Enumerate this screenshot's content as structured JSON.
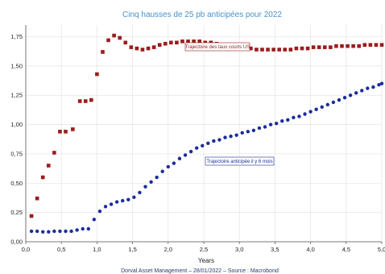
{
  "chart_data": {
    "type": "scatter",
    "title": "Cinq hausses de 25 pb anticipées pour 2022",
    "xlabel": "Years",
    "ylabel": "",
    "xlim": [
      0,
      5
    ],
    "ylim": [
      0,
      1.85
    ],
    "x_ticks": [
      "0,0",
      "0,5",
      "1,0",
      "1,5",
      "2,0",
      "2,5",
      "3,0",
      "3,5",
      "4,0",
      "4,5",
      "5,0"
    ],
    "y_ticks": [
      "0,00",
      "0,25",
      "0,50",
      "0,75",
      "1,00",
      "1,25",
      "1,50",
      "1,75"
    ],
    "grid": true,
    "source": "Dorval Asset Management – 28/01/2022 – Source : Macrobond",
    "series": [
      {
        "name": "Trajectoire des taux courts US",
        "color": "#9b1c1c",
        "marker": "square",
        "points": [
          [
            0.08,
            0.22
          ],
          [
            0.16,
            0.37
          ],
          [
            0.24,
            0.55
          ],
          [
            0.32,
            0.65
          ],
          [
            0.4,
            0.76
          ],
          [
            0.48,
            0.94
          ],
          [
            0.56,
            0.94
          ],
          [
            0.66,
            0.96
          ],
          [
            0.76,
            1.2
          ],
          [
            0.84,
            1.2
          ],
          [
            0.92,
            1.21
          ],
          [
            1.0,
            1.43
          ],
          [
            1.08,
            1.62
          ],
          [
            1.16,
            1.72
          ],
          [
            1.24,
            1.76
          ],
          [
            1.32,
            1.74
          ],
          [
            1.4,
            1.7
          ],
          [
            1.48,
            1.66
          ],
          [
            1.56,
            1.65
          ],
          [
            1.64,
            1.64
          ],
          [
            1.72,
            1.65
          ],
          [
            1.8,
            1.66
          ],
          [
            1.88,
            1.68
          ],
          [
            1.96,
            1.69
          ],
          [
            2.04,
            1.7
          ],
          [
            2.12,
            1.7
          ],
          [
            2.2,
            1.71
          ],
          [
            2.28,
            1.71
          ],
          [
            2.36,
            1.71
          ],
          [
            2.44,
            1.71
          ],
          [
            2.52,
            1.7
          ],
          [
            2.6,
            1.7
          ],
          [
            2.68,
            1.69
          ],
          [
            2.76,
            1.68
          ],
          [
            2.84,
            1.67
          ],
          [
            2.92,
            1.67
          ],
          [
            3.0,
            1.66
          ],
          [
            3.08,
            1.65
          ],
          [
            3.16,
            1.65
          ],
          [
            3.24,
            1.64
          ],
          [
            3.32,
            1.64
          ],
          [
            3.4,
            1.64
          ],
          [
            3.48,
            1.64
          ],
          [
            3.56,
            1.64
          ],
          [
            3.64,
            1.64
          ],
          [
            3.72,
            1.64
          ],
          [
            3.8,
            1.65
          ],
          [
            3.88,
            1.65
          ],
          [
            3.96,
            1.65
          ],
          [
            4.04,
            1.66
          ],
          [
            4.12,
            1.66
          ],
          [
            4.2,
            1.66
          ],
          [
            4.28,
            1.66
          ],
          [
            4.36,
            1.67
          ],
          [
            4.44,
            1.67
          ],
          [
            4.52,
            1.67
          ],
          [
            4.6,
            1.67
          ],
          [
            4.68,
            1.67
          ],
          [
            4.76,
            1.68
          ],
          [
            4.84,
            1.68
          ],
          [
            4.92,
            1.68
          ],
          [
            5.0,
            1.68
          ]
        ]
      },
      {
        "name": "Trajectoire anticipée il y 6 mois",
        "color": "#1a2d9a",
        "marker": "circle",
        "points": [
          [
            0.08,
            0.09
          ],
          [
            0.16,
            0.09
          ],
          [
            0.24,
            0.085
          ],
          [
            0.32,
            0.085
          ],
          [
            0.4,
            0.09
          ],
          [
            0.48,
            0.09
          ],
          [
            0.56,
            0.09
          ],
          [
            0.64,
            0.09
          ],
          [
            0.72,
            0.1
          ],
          [
            0.8,
            0.11
          ],
          [
            0.88,
            0.11
          ],
          [
            0.96,
            0.19
          ],
          [
            1.04,
            0.26
          ],
          [
            1.12,
            0.3
          ],
          [
            1.2,
            0.32
          ],
          [
            1.28,
            0.34
          ],
          [
            1.36,
            0.35
          ],
          [
            1.44,
            0.36
          ],
          [
            1.52,
            0.38
          ],
          [
            1.6,
            0.42
          ],
          [
            1.68,
            0.47
          ],
          [
            1.76,
            0.51
          ],
          [
            1.84,
            0.55
          ],
          [
            1.92,
            0.6
          ],
          [
            2.0,
            0.64
          ],
          [
            2.08,
            0.67
          ],
          [
            2.16,
            0.71
          ],
          [
            2.24,
            0.74
          ],
          [
            2.32,
            0.77
          ],
          [
            2.4,
            0.8
          ],
          [
            2.48,
            0.82
          ],
          [
            2.56,
            0.84
          ],
          [
            2.64,
            0.86
          ],
          [
            2.72,
            0.87
          ],
          [
            2.8,
            0.89
          ],
          [
            2.88,
            0.9
          ],
          [
            2.96,
            0.91
          ],
          [
            3.04,
            0.93
          ],
          [
            3.12,
            0.94
          ],
          [
            3.2,
            0.95
          ],
          [
            3.28,
            0.97
          ],
          [
            3.36,
            0.98
          ],
          [
            3.44,
            1.0
          ],
          [
            3.52,
            1.01
          ],
          [
            3.6,
            1.03
          ],
          [
            3.68,
            1.04
          ],
          [
            3.76,
            1.06
          ],
          [
            3.84,
            1.07
          ],
          [
            3.92,
            1.09
          ],
          [
            4.0,
            1.11
          ],
          [
            4.08,
            1.13
          ],
          [
            4.16,
            1.15
          ],
          [
            4.24,
            1.17
          ],
          [
            4.32,
            1.19
          ],
          [
            4.4,
            1.21
          ],
          [
            4.48,
            1.23
          ],
          [
            4.56,
            1.25
          ],
          [
            4.64,
            1.27
          ],
          [
            4.72,
            1.29
          ],
          [
            4.8,
            1.31
          ],
          [
            4.88,
            1.32
          ],
          [
            4.96,
            1.34
          ],
          [
            5.0,
            1.35
          ]
        ]
      }
    ]
  }
}
